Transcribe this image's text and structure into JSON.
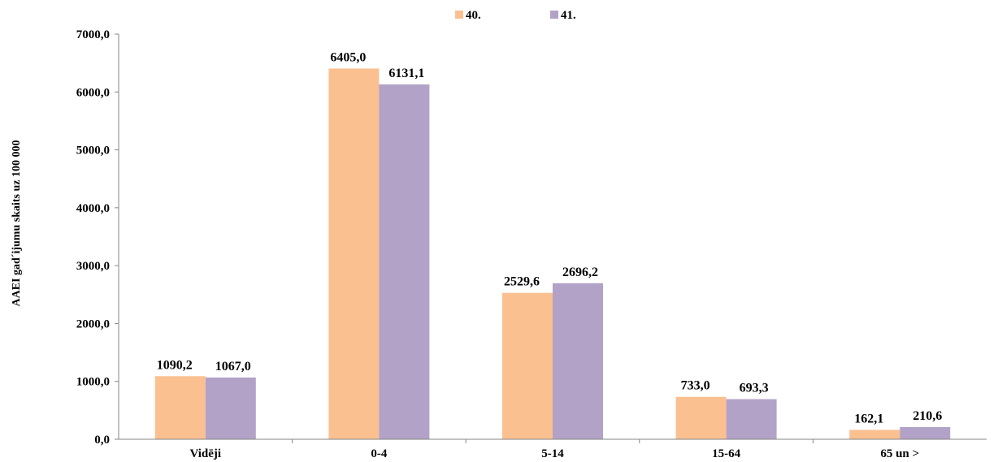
{
  "chart_data": {
    "type": "bar",
    "ylabel": "AAEI gad´ijumu skaits uz 100 000",
    "categories": [
      "Vidēji",
      "0-4",
      "5-14",
      "15-64",
      "65 un >"
    ],
    "y_ticks": [
      "0,0",
      "1000,0",
      "2000,0",
      "3000,0",
      "4000,0",
      "5000,0",
      "6000,0",
      "7000,0"
    ],
    "ylim": [
      0,
      7000
    ],
    "legend_position": "top-center",
    "grid": false,
    "series": [
      {
        "name": "40.",
        "color": "#fac090",
        "values": [
          1090.2,
          6405.0,
          2529.6,
          733.0,
          162.1
        ],
        "labels": [
          "1090,2",
          "6405,0",
          "2529,6",
          "733,0",
          "162,1"
        ]
      },
      {
        "name": "41.",
        "color": "#b3a2c7",
        "values": [
          1067.0,
          6131.1,
          2696.2,
          693.3,
          210.6
        ],
        "labels": [
          "1067,0",
          "6131,1",
          "2696,2",
          "693,3",
          "210,6"
        ]
      }
    ]
  }
}
